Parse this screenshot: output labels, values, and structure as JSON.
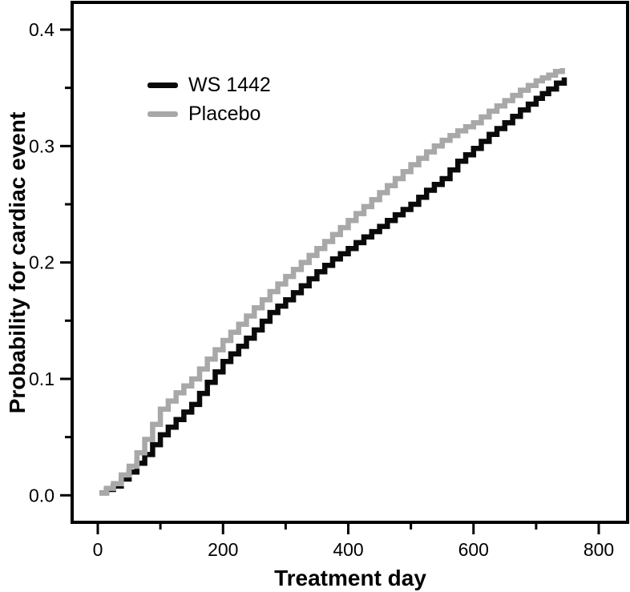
{
  "figure": {
    "background": "#ffffff",
    "axis_color": "#000000",
    "tick_label_size": "23px"
  },
  "chart_data": {
    "type": "line",
    "curve_style": "step",
    "title": "",
    "xlabel": "Treatment day",
    "ylabel": "Probability for cardiac event",
    "xlim": [
      0,
      800
    ],
    "ylim": [
      0.0,
      0.4
    ],
    "grid": false,
    "legend_position": "upper-left-inside",
    "x_major_ticks": [
      0,
      200,
      400,
      600,
      800
    ],
    "x_major_tick_labels": [
      "0",
      "200",
      "400",
      "600",
      "800"
    ],
    "x_minor_ticks": [
      100,
      300,
      500,
      700
    ],
    "y_major_ticks": [
      0.0,
      0.1,
      0.2,
      0.3,
      0.4
    ],
    "y_major_tick_labels": [
      "0.0",
      "0.1",
      "0.2",
      "0.3",
      "0.4"
    ],
    "y_minor_ticks": [
      0.05,
      0.15,
      0.25,
      0.35
    ],
    "series": [
      {
        "name": "WS 1442",
        "color": "#0a0a0a",
        "points": [
          [
            3,
            0.002
          ],
          [
            25,
            0.008
          ],
          [
            50,
            0.02
          ],
          [
            75,
            0.035
          ],
          [
            100,
            0.052
          ],
          [
            125,
            0.065
          ],
          [
            150,
            0.078
          ],
          [
            175,
            0.097
          ],
          [
            200,
            0.115
          ],
          [
            225,
            0.128
          ],
          [
            250,
            0.142
          ],
          [
            275,
            0.157
          ],
          [
            300,
            0.168
          ],
          [
            325,
            0.18
          ],
          [
            350,
            0.192
          ],
          [
            375,
            0.203
          ],
          [
            400,
            0.212
          ],
          [
            425,
            0.222
          ],
          [
            450,
            0.231
          ],
          [
            475,
            0.241
          ],
          [
            500,
            0.25
          ],
          [
            525,
            0.262
          ],
          [
            550,
            0.272
          ],
          [
            575,
            0.287
          ],
          [
            600,
            0.298
          ],
          [
            625,
            0.31
          ],
          [
            650,
            0.32
          ],
          [
            675,
            0.331
          ],
          [
            700,
            0.341
          ],
          [
            720,
            0.349
          ],
          [
            745,
            0.359
          ]
        ]
      },
      {
        "name": "Placebo",
        "color": "#a8a8a8",
        "points": [
          [
            3,
            0.002
          ],
          [
            25,
            0.01
          ],
          [
            50,
            0.025
          ],
          [
            75,
            0.048
          ],
          [
            100,
            0.074
          ],
          [
            125,
            0.088
          ],
          [
            150,
            0.1
          ],
          [
            175,
            0.117
          ],
          [
            200,
            0.133
          ],
          [
            225,
            0.147
          ],
          [
            250,
            0.161
          ],
          [
            275,
            0.175
          ],
          [
            300,
            0.188
          ],
          [
            325,
            0.2
          ],
          [
            350,
            0.212
          ],
          [
            375,
            0.224
          ],
          [
            400,
            0.236
          ],
          [
            425,
            0.248
          ],
          [
            450,
            0.26
          ],
          [
            475,
            0.272
          ],
          [
            500,
            0.284
          ],
          [
            525,
            0.295
          ],
          [
            550,
            0.305
          ],
          [
            575,
            0.313
          ],
          [
            600,
            0.32
          ],
          [
            625,
            0.33
          ],
          [
            650,
            0.339
          ],
          [
            675,
            0.348
          ],
          [
            700,
            0.356
          ],
          [
            720,
            0.361
          ],
          [
            742,
            0.367
          ]
        ]
      }
    ]
  }
}
